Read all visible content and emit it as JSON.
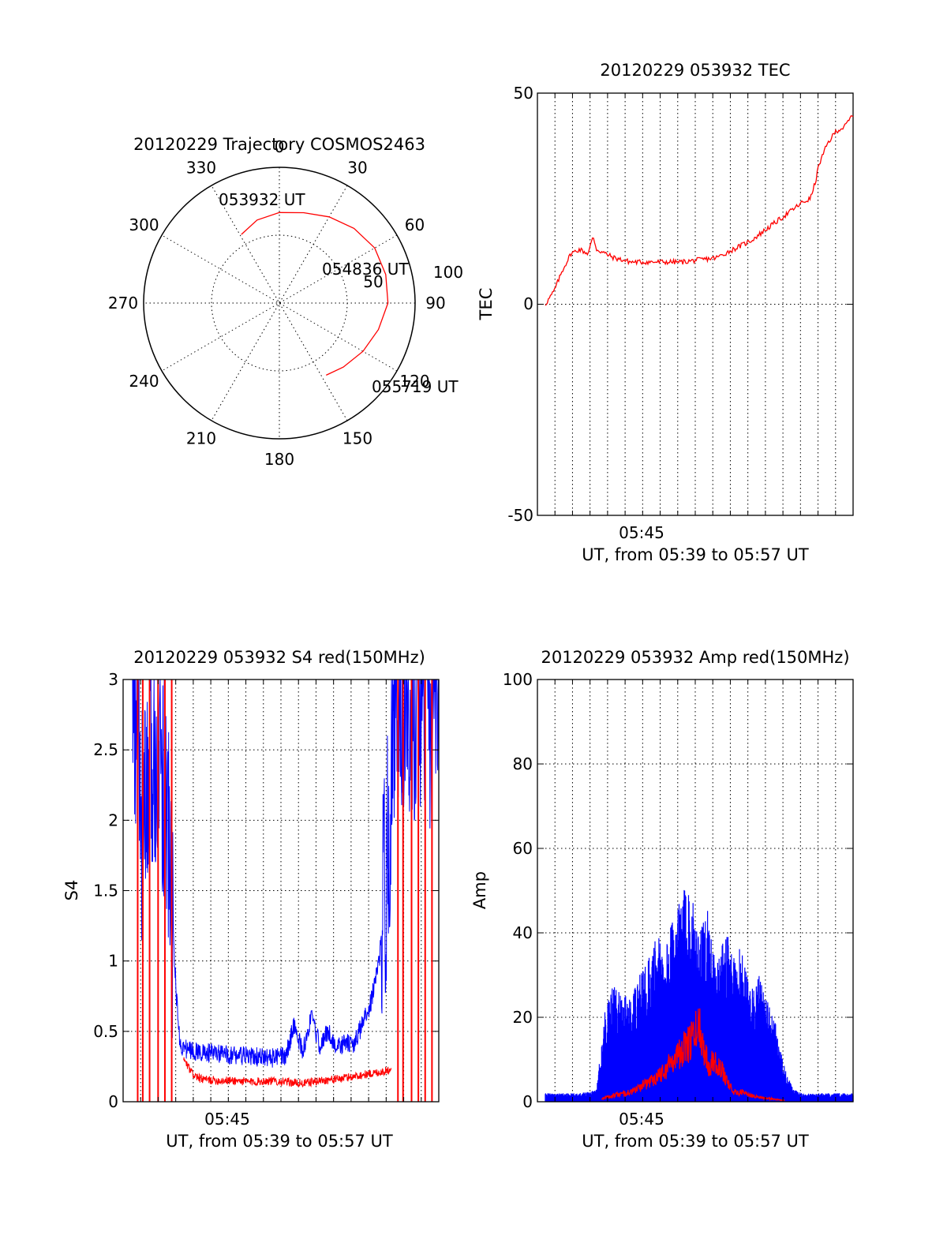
{
  "chart_data": [
    {
      "id": "trajectory",
      "type": "polar",
      "title": "20120229 Trajectory COSMOS2463",
      "angle_labels": [
        "0",
        "30",
        "60",
        "90",
        "120",
        "150",
        "180",
        "210",
        "240",
        "270",
        "300",
        "330"
      ],
      "radius_labels": [
        "50",
        "100"
      ],
      "series": [
        {
          "color": "#ff0000",
          "points_az_el": [
            [
              -29,
              38
            ],
            [
              -15,
              33
            ],
            [
              0,
              30
            ],
            [
              15,
              28
            ],
            [
              30,
              24
            ],
            [
              45,
              20
            ],
            [
              60,
              17
            ],
            [
              75,
              17
            ],
            [
              90,
              18
            ],
            [
              105,
              22
            ],
            [
              120,
              26
            ],
            [
              135,
              30
            ],
            [
              147,
              33
            ]
          ]
        }
      ],
      "annotations": [
        {
          "text": "053932 UT"
        },
        {
          "text": "054836 UT"
        },
        {
          "text": "055719 UT"
        }
      ]
    },
    {
      "id": "tec",
      "type": "line",
      "title": "20120229 053932 TEC",
      "xlabel": "UT, from 05:39 to 05:57 UT",
      "ylabel": "TEC",
      "ylim": [
        -50,
        50
      ],
      "yticks": [
        "50",
        "0",
        "-50"
      ],
      "xtick_label": "05:45",
      "colors": {
        "series": "#ff0000"
      },
      "series": [
        {
          "x_min": [
            0,
            0.5,
            1,
            1.5,
            2,
            2.5,
            2.8,
            3,
            3.5,
            4,
            5,
            6,
            7,
            8,
            9,
            10,
            10.5,
            11,
            12,
            13,
            14,
            15,
            15.5,
            15.8,
            16,
            16.5,
            17,
            17.5,
            18
          ],
          "y": [
            0,
            3,
            8,
            12,
            13,
            12,
            16,
            13,
            12,
            11,
            10,
            10,
            10,
            10,
            10.5,
            11,
            12,
            13,
            15,
            18,
            21,
            24,
            25,
            29,
            33,
            38,
            41,
            42,
            45
          ]
        }
      ]
    },
    {
      "id": "s4",
      "type": "line",
      "title": "20120229 053932 S4 red(150MHz)",
      "xlabel": "UT, from 05:39 to 05:57 UT",
      "ylabel": "S4",
      "ylim": [
        0,
        3
      ],
      "yticks": [
        "0",
        "0.5",
        "1",
        "1.5",
        "2",
        "2.5",
        "3"
      ],
      "xtick_label": "05:45",
      "colors": {
        "blue": "#0000ff",
        "red": "#ff0000"
      },
      "series": [
        {
          "color": "#0000ff",
          "x_min": [
            0,
            0.3,
            0.6,
            1,
            1.5,
            2,
            2.3,
            2.6,
            2.8,
            3,
            4,
            5,
            6,
            7,
            8,
            9,
            9.5,
            10,
            10.5,
            11,
            11.5,
            12,
            12.5,
            13,
            13.5,
            14,
            14.5,
            15,
            15.3,
            15.6,
            16,
            16.5,
            17,
            17.5,
            18
          ],
          "y": [
            3,
            2.4,
            1.8,
            2.2,
            2.7,
            2.1,
            1.4,
            0.7,
            0.4,
            0.38,
            0.35,
            0.34,
            0.33,
            0.32,
            0.31,
            0.32,
            0.55,
            0.35,
            0.6,
            0.4,
            0.5,
            0.38,
            0.42,
            0.4,
            0.55,
            0.7,
            1,
            1.8,
            2.6,
            3,
            3,
            2.8,
            3,
            2.7,
            2.9
          ]
        },
        {
          "color": "#ff0000",
          "x_min": [
            3,
            3.5,
            4,
            5,
            6,
            7,
            8,
            9,
            10,
            11,
            12,
            13,
            14,
            15,
            15.2
          ],
          "y": [
            0.3,
            0.2,
            0.16,
            0.15,
            0.15,
            0.14,
            0.15,
            0.14,
            0.13,
            0.15,
            0.16,
            0.18,
            0.2,
            0.22,
            0.25
          ]
        }
      ]
    },
    {
      "id": "amp",
      "type": "line",
      "title": "20120229 053932 Amp red(150MHz)",
      "xlabel": "UT, from 05:39 to 05:57 UT",
      "ylabel": "Amp",
      "ylim": [
        0,
        100
      ],
      "yticks": [
        "0",
        "20",
        "40",
        "60",
        "80",
        "100"
      ],
      "xtick_label": "05:45",
      "colors": {
        "blue": "#0000ff",
        "red": "#ff0000"
      },
      "series": [
        {
          "color": "#0000ff",
          "x_min": [
            0,
            1,
            2,
            3,
            3.5,
            4,
            4.5,
            5,
            5.5,
            6,
            6.5,
            7,
            7.5,
            8,
            8.5,
            9,
            9.5,
            10,
            10.5,
            11,
            11.5,
            12,
            12.5,
            13,
            13.5,
            14,
            14.5,
            15,
            16,
            17,
            18
          ],
          "y_max": [
            2,
            2,
            2,
            3,
            22,
            28,
            26,
            24,
            30,
            34,
            40,
            38,
            44,
            50,
            52,
            40,
            46,
            32,
            42,
            34,
            38,
            26,
            30,
            24,
            18,
            8,
            3,
            2,
            2,
            2,
            2
          ]
        },
        {
          "color": "#ff0000",
          "x_min": [
            3.3,
            4,
            5,
            6,
            7,
            7.5,
            8,
            8.5,
            9,
            9.5,
            10,
            10.5,
            11,
            11.5,
            12,
            13,
            14
          ],
          "y": [
            1,
            2,
            3,
            6,
            10,
            14,
            16,
            19,
            24,
            12,
            13,
            8,
            3,
            3,
            2,
            1,
            0.5
          ]
        }
      ]
    }
  ]
}
